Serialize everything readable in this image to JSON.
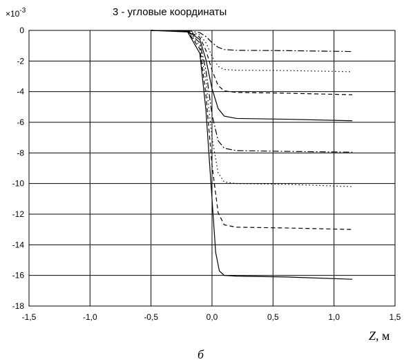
{
  "chart_data": {
    "type": "line",
    "title": "3 - угловые координаты",
    "y_scale_label": "×10",
    "y_scale_exponent": "-3",
    "xlabel_var": "Z",
    "xlabel_unit": ", м",
    "caption": "б",
    "xlim": [
      -1.5,
      1.5
    ],
    "ylim": [
      -18,
      0
    ],
    "x_ticks": [
      -1.5,
      -1.0,
      -0.5,
      0.0,
      0.5,
      1.0,
      1.5
    ],
    "x_tick_labels": [
      "-1,5",
      "-1,0",
      "-0,5",
      "0,0",
      "0,5",
      "1,0",
      "1,5"
    ],
    "y_ticks": [
      0,
      -2,
      -4,
      -6,
      -8,
      -10,
      -12,
      -14,
      -16,
      -18
    ],
    "y_tick_labels": [
      "0",
      "-2",
      "-4",
      "-6",
      "-8",
      "-10",
      "-12",
      "-14",
      "-16",
      "-18"
    ],
    "grid": true,
    "series": [
      {
        "style": "dashdot",
        "points": [
          [
            -0.5,
            0
          ],
          [
            -0.2,
            -0.02
          ],
          [
            -0.1,
            -0.15
          ],
          [
            -0.05,
            -0.4
          ],
          [
            0.0,
            -0.8
          ],
          [
            0.05,
            -1.1
          ],
          [
            0.1,
            -1.25
          ],
          [
            0.2,
            -1.3
          ],
          [
            0.6,
            -1.32
          ],
          [
            1.15,
            -1.38
          ]
        ]
      },
      {
        "style": "dotted",
        "points": [
          [
            -0.5,
            0
          ],
          [
            -0.2,
            -0.03
          ],
          [
            -0.1,
            -0.3
          ],
          [
            -0.05,
            -0.8
          ],
          [
            0.0,
            -1.7
          ],
          [
            0.05,
            -2.35
          ],
          [
            0.1,
            -2.55
          ],
          [
            0.2,
            -2.6
          ],
          [
            0.6,
            -2.62
          ],
          [
            1.15,
            -2.7
          ]
        ]
      },
      {
        "style": "dashed",
        "points": [
          [
            -0.5,
            0
          ],
          [
            -0.2,
            -0.04
          ],
          [
            -0.1,
            -0.45
          ],
          [
            -0.05,
            -1.3
          ],
          [
            0.0,
            -2.6
          ],
          [
            0.05,
            -3.6
          ],
          [
            0.1,
            -3.95
          ],
          [
            0.2,
            -4.05
          ],
          [
            0.6,
            -4.1
          ],
          [
            1.15,
            -4.2
          ]
        ]
      },
      {
        "style": "solid",
        "points": [
          [
            -0.5,
            0
          ],
          [
            -0.2,
            -0.05
          ],
          [
            -0.1,
            -0.6
          ],
          [
            -0.05,
            -1.9
          ],
          [
            0.0,
            -3.8
          ],
          [
            0.05,
            -5.1
          ],
          [
            0.1,
            -5.6
          ],
          [
            0.2,
            -5.75
          ],
          [
            0.6,
            -5.8
          ],
          [
            1.15,
            -5.9
          ]
        ]
      },
      {
        "style": "dashdot",
        "points": [
          [
            -0.5,
            0
          ],
          [
            -0.2,
            -0.06
          ],
          [
            -0.1,
            -0.8
          ],
          [
            -0.05,
            -2.6
          ],
          [
            0.0,
            -5.5
          ],
          [
            0.05,
            -7.2
          ],
          [
            0.1,
            -7.7
          ],
          [
            0.2,
            -7.85
          ],
          [
            0.6,
            -7.9
          ],
          [
            1.15,
            -7.95
          ]
        ]
      },
      {
        "style": "dotted",
        "points": [
          [
            -0.5,
            0
          ],
          [
            -0.2,
            -0.07
          ],
          [
            -0.1,
            -1.0
          ],
          [
            -0.05,
            -3.3
          ],
          [
            0.0,
            -7.0
          ],
          [
            0.05,
            -9.3
          ],
          [
            0.1,
            -9.9
          ],
          [
            0.2,
            -10.0
          ],
          [
            0.6,
            -10.05
          ],
          [
            1.15,
            -10.2
          ]
        ]
      },
      {
        "style": "dashed",
        "points": [
          [
            -0.5,
            0
          ],
          [
            -0.2,
            -0.08
          ],
          [
            -0.1,
            -1.2
          ],
          [
            -0.05,
            -4.2
          ],
          [
            0.0,
            -8.8
          ],
          [
            0.05,
            -11.9
          ],
          [
            0.1,
            -12.7
          ],
          [
            0.2,
            -12.85
          ],
          [
            0.6,
            -12.9
          ],
          [
            1.15,
            -13.0
          ]
        ]
      },
      {
        "style": "solid",
        "points": [
          [
            -0.5,
            0
          ],
          [
            -0.2,
            -0.1
          ],
          [
            -0.1,
            -1.5
          ],
          [
            -0.05,
            -5.2
          ],
          [
            0.0,
            -11.0
          ],
          [
            0.03,
            -14.5
          ],
          [
            0.06,
            -15.7
          ],
          [
            0.1,
            -16.0
          ],
          [
            0.2,
            -16.05
          ],
          [
            0.6,
            -16.1
          ],
          [
            1.15,
            -16.25
          ]
        ]
      }
    ]
  }
}
